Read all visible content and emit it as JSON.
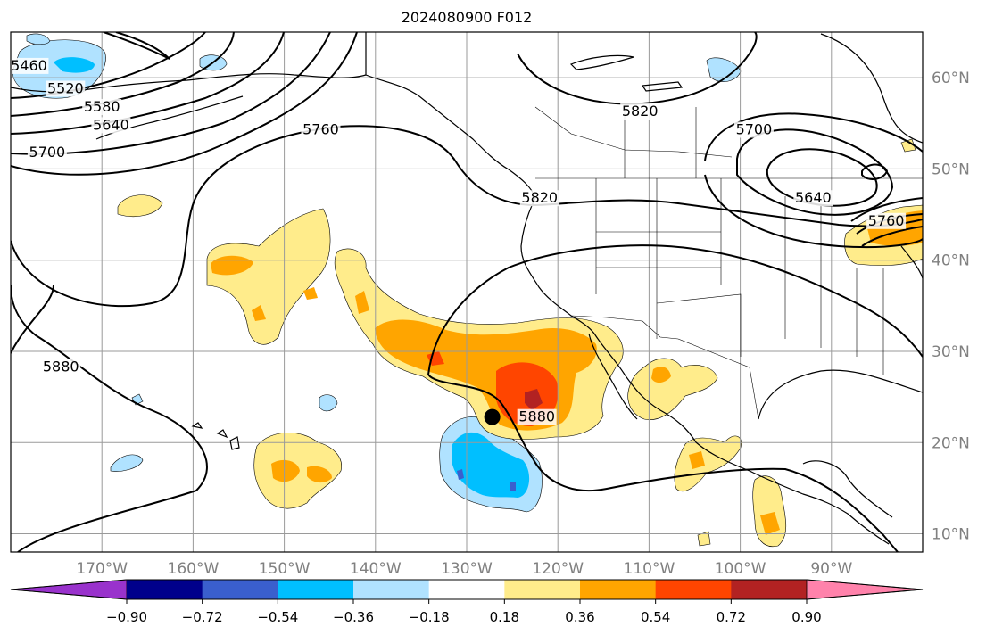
{
  "title": "2024080900 F012",
  "map": {
    "lon_range": [
      -180,
      -80
    ],
    "lat_range": [
      8,
      65
    ],
    "lon_ticks": [
      {
        "value": -170,
        "label": "170°W"
      },
      {
        "value": -160,
        "label": "160°W"
      },
      {
        "value": -150,
        "label": "150°W"
      },
      {
        "value": -140,
        "label": "140°W"
      },
      {
        "value": -130,
        "label": "130°W"
      },
      {
        "value": -120,
        "label": "120°W"
      },
      {
        "value": -110,
        "label": "110°W"
      },
      {
        "value": -100,
        "label": "100°W"
      },
      {
        "value": -90,
        "label": "90°W"
      }
    ],
    "lat_ticks": [
      {
        "value": 10,
        "label": "10°N"
      },
      {
        "value": 20,
        "label": "20°N"
      },
      {
        "value": 30,
        "label": "30°N"
      },
      {
        "value": 40,
        "label": "40°N"
      },
      {
        "value": 50,
        "label": "50°N"
      },
      {
        "value": 60,
        "label": "60°N"
      }
    ],
    "gridlines": true,
    "contour_labels": [
      {
        "text": "5460",
        "lon": -178,
        "lat": 61
      },
      {
        "text": "5520",
        "lon": -174,
        "lat": 58.5
      },
      {
        "text": "5580",
        "lon": -170,
        "lat": 56.5
      },
      {
        "text": "5640",
        "lon": -169,
        "lat": 54.5
      },
      {
        "text": "5700",
        "lon": -176,
        "lat": 51.5
      },
      {
        "text": "5760",
        "lon": -146,
        "lat": 54
      },
      {
        "text": "5820",
        "lon": -111,
        "lat": 56
      },
      {
        "text": "5700",
        "lon": -98.5,
        "lat": 54
      },
      {
        "text": "5640",
        "lon": -92,
        "lat": 46.5
      },
      {
        "text": "5760",
        "lon": -84,
        "lat": 44
      },
      {
        "text": "5820",
        "lon": -122,
        "lat": 46.5
      },
      {
        "text": "5880",
        "lon": -174.5,
        "lat": 28
      },
      {
        "text": "5880",
        "lon": -122.3,
        "lat": 22.5
      }
    ],
    "storm_marker": {
      "name": "storm-center",
      "lon": -127.2,
      "lat": 22.8
    }
  },
  "colorbar": {
    "colors": [
      "#9932cc",
      "#00008b",
      "#3a5fcd",
      "#00bfff",
      "#b0e2ff",
      "#ffffff",
      "#ffec8b",
      "#ffa500",
      "#ff4500",
      "#b22222",
      "#ff82ab"
    ],
    "tick_labels": [
      "−0.90",
      "−0.72",
      "−0.54",
      "−0.36",
      "−0.18",
      "0.18",
      "0.36",
      "0.54",
      "0.72",
      "0.90"
    ]
  }
}
